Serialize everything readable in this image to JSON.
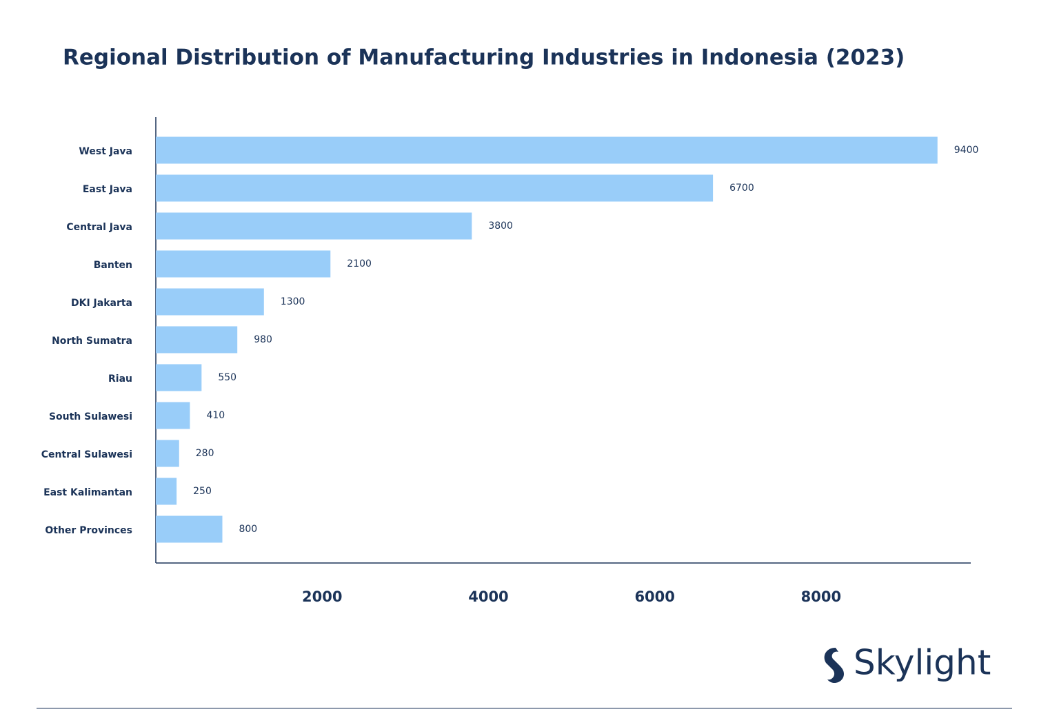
{
  "chart_data": {
    "type": "hbar",
    "title": "Regional Distribution of Manufacturing Industries in Indonesia (2023)",
    "categories": [
      "West Java",
      "East Java",
      "Central Java",
      "Banten",
      "DKI Jakarta",
      "North Sumatra",
      "Riau",
      "South Sulawesi",
      "Central Sulawesi",
      "East Kalimantan",
      "Other Provinces"
    ],
    "values": [
      9400,
      6700,
      3800,
      2100,
      1300,
      980,
      550,
      410,
      280,
      250,
      800
    ],
    "color": "#99cdf9",
    "xlim": [
      0,
      9800
    ],
    "xticks": [
      2000,
      4000,
      6000,
      8000
    ],
    "grid": false
  },
  "logo": "Skylight"
}
